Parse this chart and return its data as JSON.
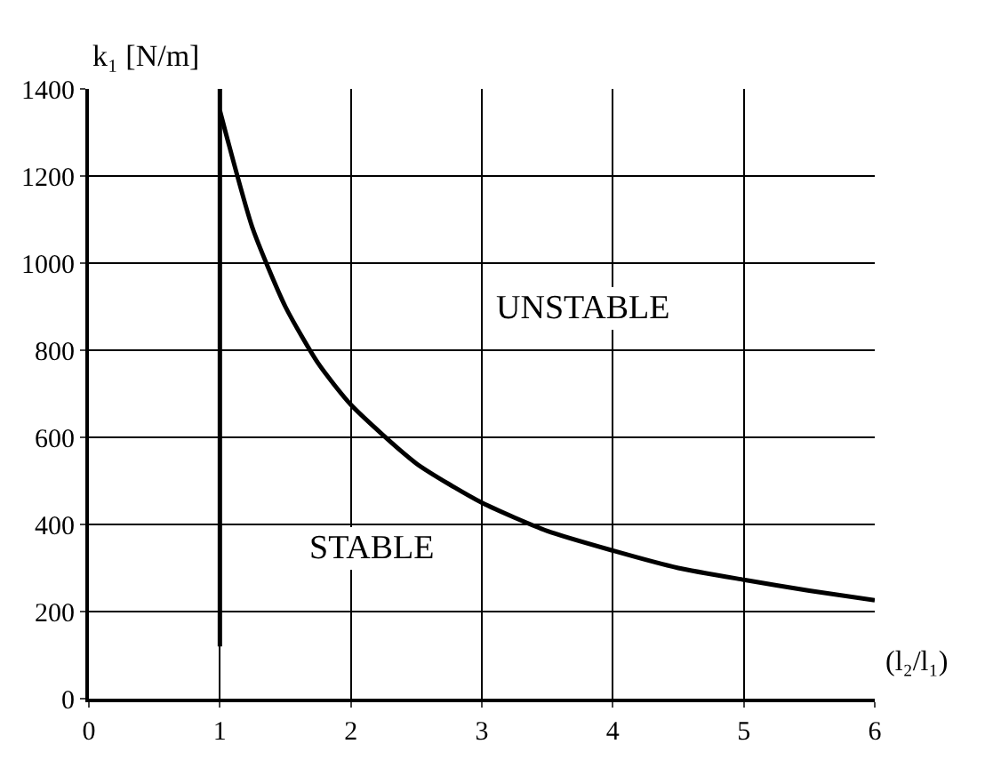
{
  "chart_data": {
    "type": "line",
    "xlabel": "(l₂/l₁)",
    "ylabel": "k₁ [N/m]",
    "series": [
      {
        "color": "#000000",
        "x": [
          1,
          1.25,
          1.5,
          1.75,
          2,
          2.5,
          3,
          3.5,
          4,
          4.5,
          5,
          5.5,
          6
        ],
        "values": [
          1350,
          1080,
          900,
          770,
          675,
          540,
          450,
          385,
          340,
          300,
          273,
          248,
          226
        ]
      },
      {
        "color": "#000000",
        "x": [
          1,
          1
        ],
        "values": [
          120,
          1400
        ]
      }
    ],
    "annotations": [
      "UNSTABLE",
      "STABLE"
    ],
    "xlim": [
      0,
      6
    ],
    "xticks": [
      0,
      1,
      2,
      3,
      4,
      5,
      6
    ],
    "ylim": [
      0,
      1400
    ],
    "yticks": [
      0,
      200,
      400,
      600,
      800,
      1000,
      1200,
      1400
    ],
    "grid": true,
    "marker": "none",
    "line_style": "solid"
  }
}
